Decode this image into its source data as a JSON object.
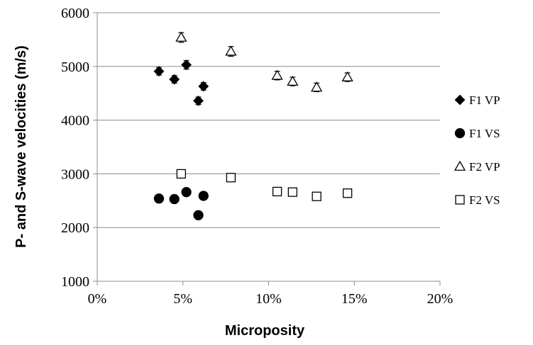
{
  "chart_data": {
    "type": "scatter",
    "xlabel": "Microposity",
    "ylabel": "P- and S-wave velocities (m/s)",
    "xlim": [
      0,
      0.2
    ],
    "ylim": [
      1000,
      6000
    ],
    "x_ticks": [
      0,
      0.05,
      0.1,
      0.15,
      0.2
    ],
    "x_tick_labels": [
      "0%",
      "5%",
      "10%",
      "15%",
      "20%"
    ],
    "y_ticks": [
      1000,
      2000,
      3000,
      4000,
      5000,
      6000
    ],
    "y_tick_labels": [
      "1000",
      "2000",
      "3000",
      "4000",
      "5000",
      "6000"
    ],
    "grid": "horizontal",
    "legend_position": "right",
    "series": [
      {
        "name": "F1 VP",
        "marker": "diamond",
        "filled": true,
        "points": [
          {
            "x": 0.036,
            "y": 4910,
            "err": 70
          },
          {
            "x": 0.045,
            "y": 4760,
            "err": 70
          },
          {
            "x": 0.052,
            "y": 5030,
            "err": 80
          },
          {
            "x": 0.059,
            "y": 4360,
            "err": 70
          },
          {
            "x": 0.062,
            "y": 4630,
            "err": 70
          }
        ]
      },
      {
        "name": "F1 VS",
        "marker": "circle",
        "filled": true,
        "points": [
          {
            "x": 0.036,
            "y": 2540
          },
          {
            "x": 0.045,
            "y": 2530
          },
          {
            "x": 0.052,
            "y": 2660
          },
          {
            "x": 0.059,
            "y": 2230
          },
          {
            "x": 0.062,
            "y": 2590
          }
        ]
      },
      {
        "name": "F2 VP",
        "marker": "triangle",
        "filled": false,
        "points": [
          {
            "x": 0.049,
            "y": 5540,
            "err": 90
          },
          {
            "x": 0.078,
            "y": 5280,
            "err": 90
          },
          {
            "x": 0.105,
            "y": 4830,
            "err": 80
          },
          {
            "x": 0.114,
            "y": 4720,
            "err": 80
          },
          {
            "x": 0.128,
            "y": 4610,
            "err": 80
          },
          {
            "x": 0.146,
            "y": 4800,
            "err": 80
          }
        ]
      },
      {
        "name": "F2 VS",
        "marker": "square",
        "filled": false,
        "points": [
          {
            "x": 0.049,
            "y": 3000
          },
          {
            "x": 0.078,
            "y": 2930
          },
          {
            "x": 0.105,
            "y": 2670
          },
          {
            "x": 0.114,
            "y": 2660
          },
          {
            "x": 0.128,
            "y": 2580
          },
          {
            "x": 0.146,
            "y": 2640
          }
        ]
      }
    ]
  }
}
